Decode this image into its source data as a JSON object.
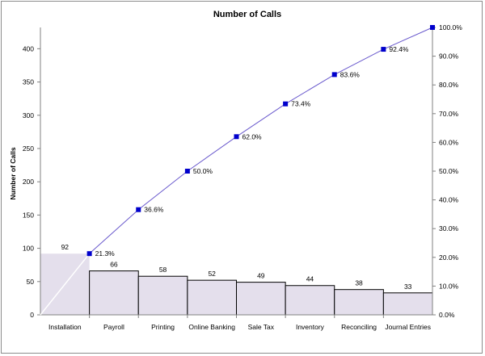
{
  "chart_data": {
    "type": "bar",
    "title": "Number of Calls",
    "xlabel": "",
    "ylabel": "Number of Calls",
    "y2label": "",
    "categories": [
      "Installation",
      "Payroll",
      "Printing",
      "Online Banking",
      "Sale Tax",
      "Inventory",
      "Reconciling",
      "Journal Entries"
    ],
    "values": [
      92,
      66,
      58,
      52,
      49,
      44,
      38,
      33
    ],
    "cumulative_percent": [
      21.3,
      36.6,
      50.0,
      62.0,
      73.4,
      83.6,
      92.4,
      100.0
    ],
    "cumulative_labels": [
      "21.3%",
      "36.6%",
      "50.0%",
      "62.0%",
      "73.4%",
      "83.6%",
      "92.4%",
      ""
    ],
    "ylim": [
      0,
      432
    ],
    "y2lim": [
      0,
      100
    ],
    "yticks": [
      0,
      50,
      100,
      150,
      200,
      250,
      300,
      350,
      400
    ],
    "y2ticks": [
      "0.0%",
      "10.0%",
      "20.0%",
      "30.0%",
      "40.0%",
      "50.0%",
      "60.0%",
      "70.0%",
      "80.0%",
      "90.0%",
      "100.0%"
    ],
    "grid": false,
    "legend": "none",
    "colors": {
      "bar_fill": "#e4dfec",
      "bar_stroke": "#000000",
      "line": "#6a5acd",
      "marker": "#0000cc",
      "axis": "#808080"
    }
  }
}
